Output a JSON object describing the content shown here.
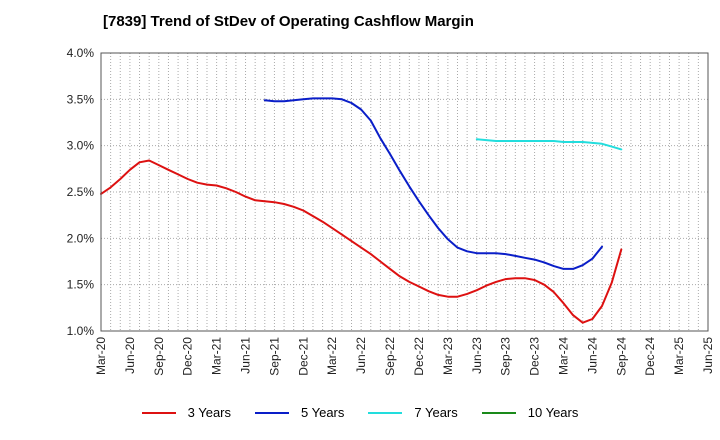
{
  "chart_data": {
    "type": "line",
    "title": "[7839]  Trend of StDev of Operating Cashflow Margin",
    "xlabel": "",
    "ylabel": "",
    "ylim": [
      1.0,
      4.0
    ],
    "yticks": [
      "1.0%",
      "1.5%",
      "2.0%",
      "2.5%",
      "3.0%",
      "3.5%",
      "4.0%"
    ],
    "ytick_values": [
      1.0,
      1.5,
      2.0,
      2.5,
      3.0,
      3.5,
      4.0
    ],
    "xticks": [
      "Mar-20",
      "Jun-20",
      "Sep-20",
      "Dec-20",
      "Mar-21",
      "Jun-21",
      "Sep-21",
      "Dec-21",
      "Mar-22",
      "Jun-22",
      "Sep-22",
      "Dec-22",
      "Mar-23",
      "Jun-23",
      "Sep-23",
      "Dec-23",
      "Mar-24",
      "Jun-24",
      "Sep-24",
      "Dec-24",
      "Mar-25",
      "Jun-25"
    ],
    "grid": true,
    "legend_position": "bottom",
    "series": [
      {
        "name": "3 Years",
        "color": "#dd1111",
        "points": [
          [
            "2020-03",
            2.48
          ],
          [
            "2020-04",
            2.55
          ],
          [
            "2020-05",
            2.64
          ],
          [
            "2020-06",
            2.74
          ],
          [
            "2020-07",
            2.82
          ],
          [
            "2020-08",
            2.84
          ],
          [
            "2020-09",
            2.79
          ],
          [
            "2020-10",
            2.74
          ],
          [
            "2020-11",
            2.69
          ],
          [
            "2020-12",
            2.64
          ],
          [
            "2021-01",
            2.6
          ],
          [
            "2021-02",
            2.58
          ],
          [
            "2021-03",
            2.57
          ],
          [
            "2021-04",
            2.54
          ],
          [
            "2021-05",
            2.5
          ],
          [
            "2021-06",
            2.45
          ],
          [
            "2021-07",
            2.41
          ],
          [
            "2021-08",
            2.4
          ],
          [
            "2021-09",
            2.39
          ],
          [
            "2021-10",
            2.37
          ],
          [
            "2021-11",
            2.34
          ],
          [
            "2021-12",
            2.3
          ],
          [
            "2022-01",
            2.24
          ],
          [
            "2022-02",
            2.18
          ],
          [
            "2022-03",
            2.11
          ],
          [
            "2022-04",
            2.04
          ],
          [
            "2022-05",
            1.97
          ],
          [
            "2022-06",
            1.9
          ],
          [
            "2022-07",
            1.83
          ],
          [
            "2022-08",
            1.75
          ],
          [
            "2022-09",
            1.67
          ],
          [
            "2022-10",
            1.59
          ],
          [
            "2022-11",
            1.53
          ],
          [
            "2022-12",
            1.48
          ],
          [
            "2023-01",
            1.43
          ],
          [
            "2023-02",
            1.39
          ],
          [
            "2023-03",
            1.37
          ],
          [
            "2023-04",
            1.37
          ],
          [
            "2023-05",
            1.4
          ],
          [
            "2023-06",
            1.44
          ],
          [
            "2023-07",
            1.49
          ],
          [
            "2023-08",
            1.53
          ],
          [
            "2023-09",
            1.56
          ],
          [
            "2023-10",
            1.57
          ],
          [
            "2023-11",
            1.57
          ],
          [
            "2023-12",
            1.55
          ],
          [
            "2024-01",
            1.5
          ],
          [
            "2024-02",
            1.42
          ],
          [
            "2024-03",
            1.3
          ],
          [
            "2024-04",
            1.17
          ],
          [
            "2024-05",
            1.09
          ],
          [
            "2024-06",
            1.13
          ],
          [
            "2024-07",
            1.27
          ],
          [
            "2024-08",
            1.52
          ],
          [
            "2024-09",
            1.88
          ]
        ]
      },
      {
        "name": "5 Years",
        "color": "#0a1ec8",
        "points": [
          [
            "2021-08",
            3.49
          ],
          [
            "2021-09",
            3.48
          ],
          [
            "2021-10",
            3.48
          ],
          [
            "2021-11",
            3.49
          ],
          [
            "2021-12",
            3.5
          ],
          [
            "2022-01",
            3.51
          ],
          [
            "2022-02",
            3.51
          ],
          [
            "2022-03",
            3.51
          ],
          [
            "2022-04",
            3.5
          ],
          [
            "2022-05",
            3.46
          ],
          [
            "2022-06",
            3.39
          ],
          [
            "2022-07",
            3.27
          ],
          [
            "2022-08",
            3.08
          ],
          [
            "2022-09",
            2.91
          ],
          [
            "2022-10",
            2.73
          ],
          [
            "2022-11",
            2.56
          ],
          [
            "2022-12",
            2.4
          ],
          [
            "2023-01",
            2.25
          ],
          [
            "2023-02",
            2.11
          ],
          [
            "2023-03",
            1.99
          ],
          [
            "2023-04",
            1.9
          ],
          [
            "2023-05",
            1.86
          ],
          [
            "2023-06",
            1.84
          ],
          [
            "2023-07",
            1.84
          ],
          [
            "2023-08",
            1.84
          ],
          [
            "2023-09",
            1.83
          ],
          [
            "2023-10",
            1.81
          ],
          [
            "2023-11",
            1.79
          ],
          [
            "2023-12",
            1.77
          ],
          [
            "2024-01",
            1.74
          ],
          [
            "2024-02",
            1.7
          ],
          [
            "2024-03",
            1.67
          ],
          [
            "2024-04",
            1.67
          ],
          [
            "2024-05",
            1.71
          ],
          [
            "2024-06",
            1.78
          ],
          [
            "2024-07",
            1.91
          ]
        ]
      },
      {
        "name": "7 Years",
        "color": "#22dddd",
        "points": [
          [
            "2023-06",
            3.07
          ],
          [
            "2023-07",
            3.06
          ],
          [
            "2023-08",
            3.05
          ],
          [
            "2023-09",
            3.05
          ],
          [
            "2023-10",
            3.05
          ],
          [
            "2023-11",
            3.05
          ],
          [
            "2023-12",
            3.05
          ],
          [
            "2024-01",
            3.05
          ],
          [
            "2024-02",
            3.05
          ],
          [
            "2024-03",
            3.04
          ],
          [
            "2024-04",
            3.04
          ],
          [
            "2024-05",
            3.04
          ],
          [
            "2024-06",
            3.03
          ],
          [
            "2024-07",
            3.02
          ],
          [
            "2024-08",
            2.99
          ],
          [
            "2024-09",
            2.96
          ]
        ]
      },
      {
        "name": "10 Years",
        "color": "#1a8a1a",
        "points": []
      }
    ]
  }
}
